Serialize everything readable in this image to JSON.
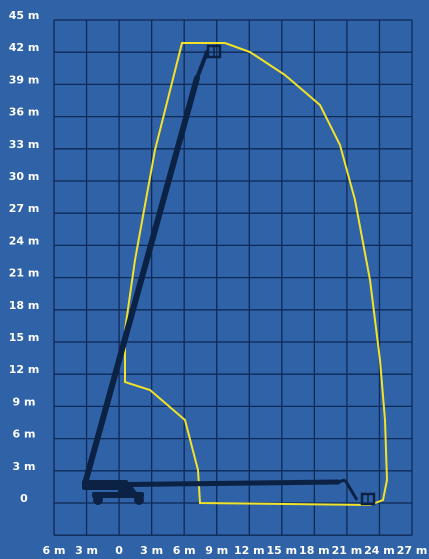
{
  "y_axis": {
    "labels": [
      "45 m",
      "42 m",
      "39 m",
      "36 m",
      "33 m",
      "30 m",
      "27 m",
      "24 m",
      "21 m",
      "18 m",
      "15 m",
      "12 m",
      "9 m",
      "6 m",
      "3 m",
      "0"
    ]
  },
  "x_axis": {
    "labels": [
      "6 m",
      "3 m",
      "0",
      "3 m",
      "6 m",
      "9 m",
      "12 m",
      "15 m",
      "18 m",
      "21 m",
      "24 m",
      "27 m"
    ]
  }
}
